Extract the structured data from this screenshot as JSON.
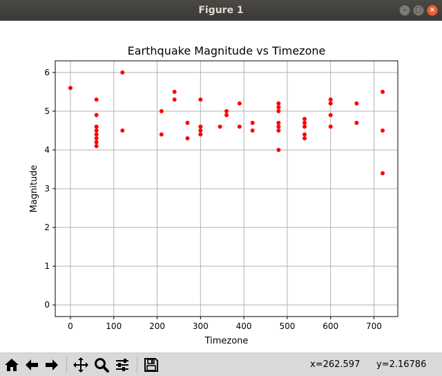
{
  "window": {
    "title": "Figure 1"
  },
  "chart_data": {
    "type": "scatter",
    "title": "Earthquake Magnitude vs Timezone",
    "xlabel": "Timezone",
    "ylabel": "Magnitude",
    "xlim": [
      -35,
      755
    ],
    "ylim": [
      -0.3,
      6.3
    ],
    "xticks": [
      0,
      100,
      200,
      300,
      400,
      500,
      600,
      700
    ],
    "yticks": [
      0,
      1,
      2,
      3,
      4,
      5,
      6
    ],
    "grid": true,
    "marker_color": "#ff0000",
    "points": [
      [
        0,
        5.6
      ],
      [
        60,
        5.3
      ],
      [
        60,
        4.9
      ],
      [
        60,
        4.6
      ],
      [
        60,
        4.5
      ],
      [
        60,
        4.4
      ],
      [
        60,
        4.3
      ],
      [
        60,
        4.2
      ],
      [
        60,
        4.1
      ],
      [
        120,
        6.0
      ],
      [
        120,
        4.5
      ],
      [
        210,
        5.0
      ],
      [
        210,
        4.4
      ],
      [
        240,
        5.5
      ],
      [
        240,
        5.3
      ],
      [
        270,
        4.7
      ],
      [
        270,
        4.3
      ],
      [
        300,
        5.3
      ],
      [
        300,
        4.6
      ],
      [
        300,
        4.5
      ],
      [
        300,
        4.4
      ],
      [
        345,
        4.6
      ],
      [
        360,
        5.0
      ],
      [
        360,
        4.9
      ],
      [
        390,
        5.2
      ],
      [
        390,
        4.6
      ],
      [
        420,
        4.7
      ],
      [
        420,
        4.5
      ],
      [
        480,
        5.2
      ],
      [
        480,
        5.1
      ],
      [
        480,
        5.0
      ],
      [
        480,
        4.7
      ],
      [
        480,
        4.6
      ],
      [
        480,
        4.5
      ],
      [
        480,
        4.0
      ],
      [
        540,
        4.8
      ],
      [
        540,
        4.7
      ],
      [
        540,
        4.6
      ],
      [
        540,
        4.4
      ],
      [
        540,
        4.3
      ],
      [
        600,
        5.3
      ],
      [
        600,
        5.2
      ],
      [
        600,
        4.9
      ],
      [
        600,
        4.6
      ],
      [
        660,
        5.2
      ],
      [
        660,
        4.7
      ],
      [
        720,
        5.5
      ],
      [
        720,
        4.5
      ],
      [
        720,
        3.4
      ]
    ]
  },
  "toolbar": {
    "items": [
      {
        "name": "home-icon"
      },
      {
        "name": "back-icon"
      },
      {
        "name": "forward-icon"
      },
      {
        "name": "pan-icon"
      },
      {
        "name": "zoom-icon"
      },
      {
        "name": "configure-subplots-icon"
      },
      {
        "name": "save-icon"
      }
    ],
    "coord_x": "x=262.597",
    "coord_y": "y=2.16786"
  }
}
